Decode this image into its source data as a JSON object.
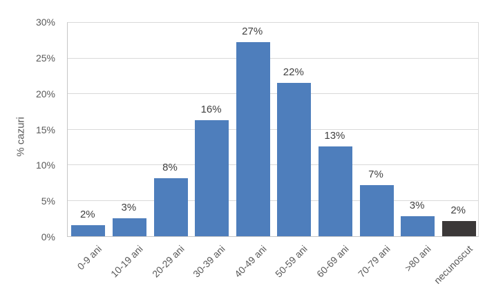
{
  "chart_data": {
    "type": "bar",
    "title": "",
    "xlabel": "",
    "ylabel": "% cazuri",
    "ylim": [
      0,
      30
    ],
    "ytick_step": 5,
    "ytick_labels": [
      "0%",
      "5%",
      "10%",
      "15%",
      "20%",
      "25%",
      "30%"
    ],
    "grid": true,
    "legend": "none",
    "categories": [
      "0-9 ani",
      "10-19 ani",
      "20-29 ani",
      "30-39 ani",
      "40-49 ani",
      "50-59 ani",
      "60-69 ani",
      "70-79 ani",
      ">80 ani",
      "necunoscut"
    ],
    "values": [
      1.6,
      2.5,
      8.2,
      16.3,
      27.3,
      21.6,
      12.6,
      7.2,
      2.8,
      2.1
    ],
    "data_labels": [
      "2%",
      "3%",
      "8%",
      "16%",
      "27%",
      "22%",
      "13%",
      "7%",
      "3%",
      "2%"
    ],
    "bar_colors": [
      "#4e7ebc",
      "#4e7ebc",
      "#4e7ebc",
      "#4e7ebc",
      "#4e7ebc",
      "#4e7ebc",
      "#4e7ebc",
      "#4e7ebc",
      "#4e7ebc",
      "#3b3838"
    ],
    "colors": {
      "bar_blue": "#4e7ebc",
      "bar_dark": "#3b3838",
      "gridline": "#d9d9d9",
      "axis_line": "#c6c6c6",
      "tick_text": "#595959",
      "data_label_text": "#404040",
      "background": "#ffffff"
    }
  }
}
